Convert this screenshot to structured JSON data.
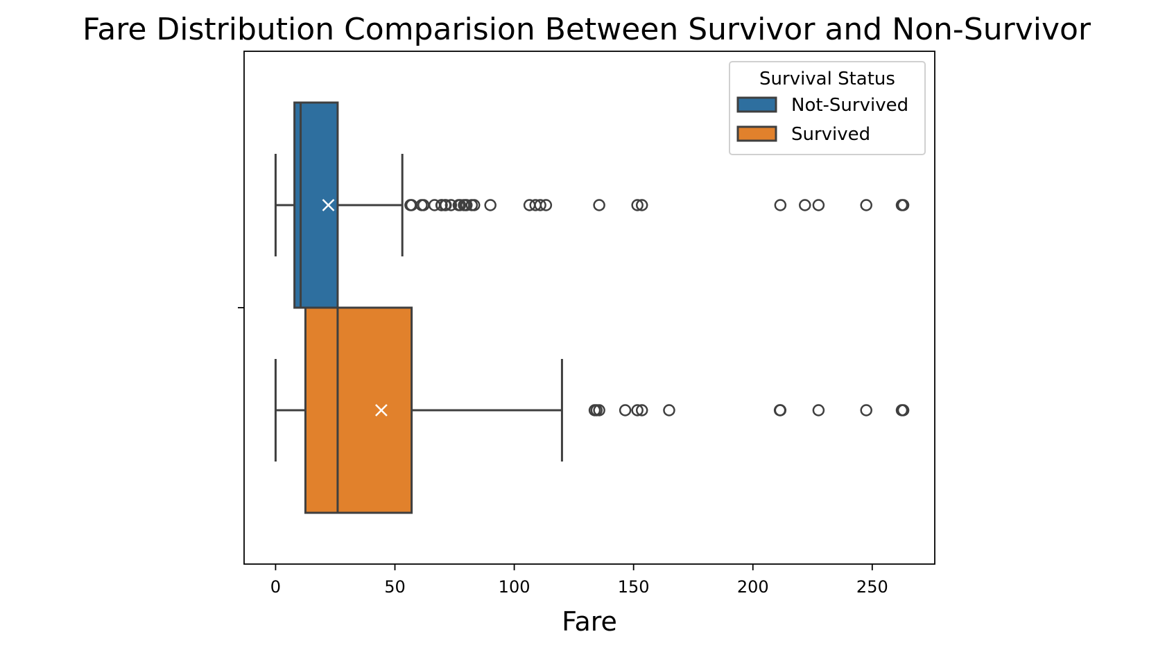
{
  "chart_data": {
    "type": "box",
    "title": "Fare Distribution Comparision Between Survivor and Non-Survivor",
    "xlabel": "Fare",
    "ylabel": "",
    "xlim": [
      -13.2,
      276.2
    ],
    "xticks": [
      0,
      50,
      100,
      150,
      200,
      250
    ],
    "orientation": "horizontal",
    "grid": false,
    "legend": {
      "title": "Survival Status",
      "placement": "top-right"
    },
    "series": [
      {
        "name": "Not-Survived",
        "color": "#2e6f9f",
        "whisker_low": 0,
        "q1": 7.9,
        "median": 10.5,
        "q3": 26,
        "whisker_high": 53.1,
        "mean": 22.1,
        "outliers": [
          56.5,
          57,
          61.2,
          62,
          66.6,
          69.5,
          69.6,
          71,
          71.3,
          73.5,
          76.7,
          77.3,
          78.9,
          79.6,
          80,
          82.2,
          83.2,
          90,
          106.4,
          108.9,
          110.9,
          113.3,
          135.6,
          151.6,
          153.5,
          211.5,
          221.8,
          227.5,
          247.5,
          262.4,
          263
        ]
      },
      {
        "name": "Survived",
        "color": "#e1812c",
        "whisker_low": 0,
        "q1": 12.5,
        "median": 26,
        "q3": 57,
        "whisker_high": 120,
        "mean": 44.3,
        "outliers": [
          133.7,
          134.5,
          135.6,
          146.5,
          151.6,
          153.5,
          164.9,
          211.3,
          211.5,
          227.5,
          247.5,
          262.4,
          263
        ]
      }
    ]
  }
}
